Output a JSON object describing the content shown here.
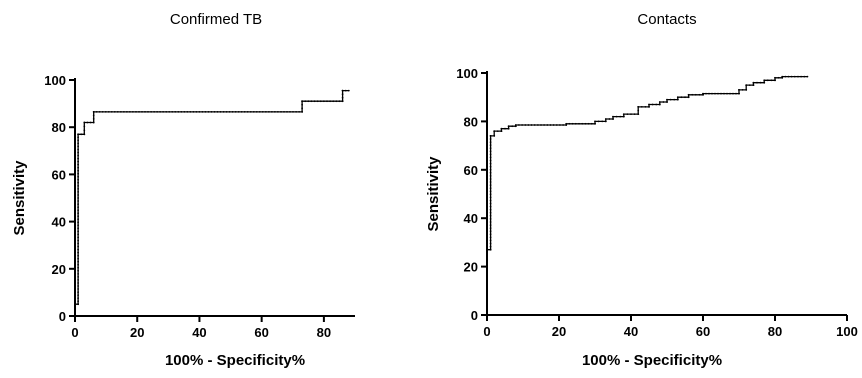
{
  "chart_data": [
    {
      "type": "line",
      "title": "Confirmed TB",
      "xlabel": "100% - Specificity%",
      "ylabel": "Sensitivity",
      "xlim": [
        0,
        90
      ],
      "ylim": [
        0,
        100
      ],
      "xticks": [
        0,
        20,
        40,
        60,
        80
      ],
      "yticks": [
        0,
        20,
        40,
        60,
        80,
        100
      ],
      "grid": false,
      "series": [
        {
          "x": [
            0,
            0,
            1,
            1,
            3,
            3,
            6,
            6,
            73,
            73,
            86,
            86,
            88
          ],
          "y": [
            0,
            5,
            5,
            77,
            77,
            82,
            82,
            86.5,
            86.5,
            91,
            91,
            95.5,
            95.5
          ]
        }
      ]
    },
    {
      "type": "line",
      "title": "Contacts",
      "xlabel": "100% - Specificity%",
      "ylabel": "Sensitivity",
      "xlim": [
        0,
        100
      ],
      "ylim": [
        0,
        100
      ],
      "xticks": [
        0,
        20,
        40,
        60,
        80,
        100
      ],
      "yticks": [
        0,
        20,
        40,
        60,
        80,
        100
      ],
      "grid": false,
      "series": [
        {
          "x": [
            0,
            0,
            1,
            1,
            2,
            2,
            4,
            4,
            6,
            6,
            8,
            8,
            22,
            22,
            30,
            30,
            33,
            33,
            35,
            35,
            38,
            38,
            42,
            42,
            45,
            45,
            48,
            48,
            50,
            50,
            53,
            53,
            56,
            56,
            60,
            60,
            70,
            70,
            72,
            72,
            74,
            74,
            77,
            77,
            80,
            80,
            82,
            82,
            89
          ],
          "y": [
            0,
            27,
            27,
            74,
            74,
            76,
            76,
            77,
            77,
            78,
            78,
            78.5,
            78.5,
            79,
            79,
            80,
            80,
            81,
            81,
            82,
            82,
            83,
            83,
            86,
            86,
            87,
            87,
            88,
            88,
            89,
            89,
            90,
            90,
            91,
            91,
            91.5,
            91.5,
            93,
            93,
            95,
            95,
            96,
            96,
            97,
            97,
            98,
            98,
            98.5,
            98.5
          ]
        }
      ]
    }
  ]
}
